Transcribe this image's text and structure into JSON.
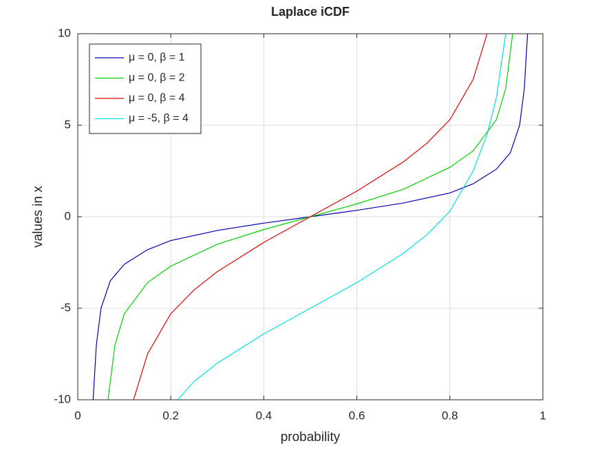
{
  "chart_data": {
    "type": "line",
    "title": "Laplace iCDF",
    "x_label": "probability",
    "y_label": "values in x",
    "xlim": [
      0,
      1
    ],
    "ylim": [
      -10,
      10
    ],
    "xticks": [
      0,
      0.2,
      0.4,
      0.6,
      0.8,
      1
    ],
    "yticks": [
      -10,
      -5,
      0,
      5,
      10
    ],
    "grid": true,
    "legend": "top-left",
    "series": [
      {
        "name": "μ = 0, β = 1",
        "color": "#0000b0",
        "x": [
          0.033,
          0.04,
          0.05,
          0.07,
          0.1,
          0.15,
          0.2,
          0.3,
          0.4,
          0.5,
          0.6,
          0.7,
          0.8,
          0.85,
          0.9,
          0.93,
          0.95,
          0.96,
          0.967
        ],
        "values": [
          -10,
          -7,
          -5,
          -3.5,
          -2.6,
          -1.8,
          -1.3,
          -0.75,
          -0.35,
          0,
          0.35,
          0.75,
          1.3,
          1.8,
          2.6,
          3.5,
          5,
          7,
          10
        ]
      },
      {
        "name": "μ = 0, β = 2",
        "color": "#00d000",
        "x": [
          0.065,
          0.08,
          0.1,
          0.15,
          0.2,
          0.3,
          0.4,
          0.5,
          0.6,
          0.7,
          0.8,
          0.85,
          0.9,
          0.92,
          0.935
        ],
        "values": [
          -10,
          -7,
          -5.3,
          -3.6,
          -2.7,
          -1.5,
          -0.7,
          0,
          0.7,
          1.5,
          2.7,
          3.6,
          5.3,
          7,
          10
        ]
      },
      {
        "name": "μ = 0, β = 4",
        "color": "#e00000",
        "x": [
          0.12,
          0.15,
          0.2,
          0.25,
          0.3,
          0.4,
          0.5,
          0.6,
          0.7,
          0.75,
          0.8,
          0.85,
          0.88
        ],
        "values": [
          -10,
          -7.5,
          -5.3,
          -4,
          -3,
          -1.4,
          0,
          1.4,
          3,
          4,
          5.3,
          7.5,
          10
        ]
      },
      {
        "name": "μ = -5, β = 4",
        "color": "#00e0e0",
        "x": [
          0.215,
          0.25,
          0.3,
          0.4,
          0.5,
          0.6,
          0.7,
          0.75,
          0.8,
          0.85,
          0.88,
          0.9,
          0.92
        ],
        "values": [
          -10,
          -9,
          -8,
          -6.4,
          -5,
          -3.6,
          -2,
          -1,
          0.3,
          2.5,
          4.5,
          6.5,
          10
        ]
      }
    ]
  }
}
